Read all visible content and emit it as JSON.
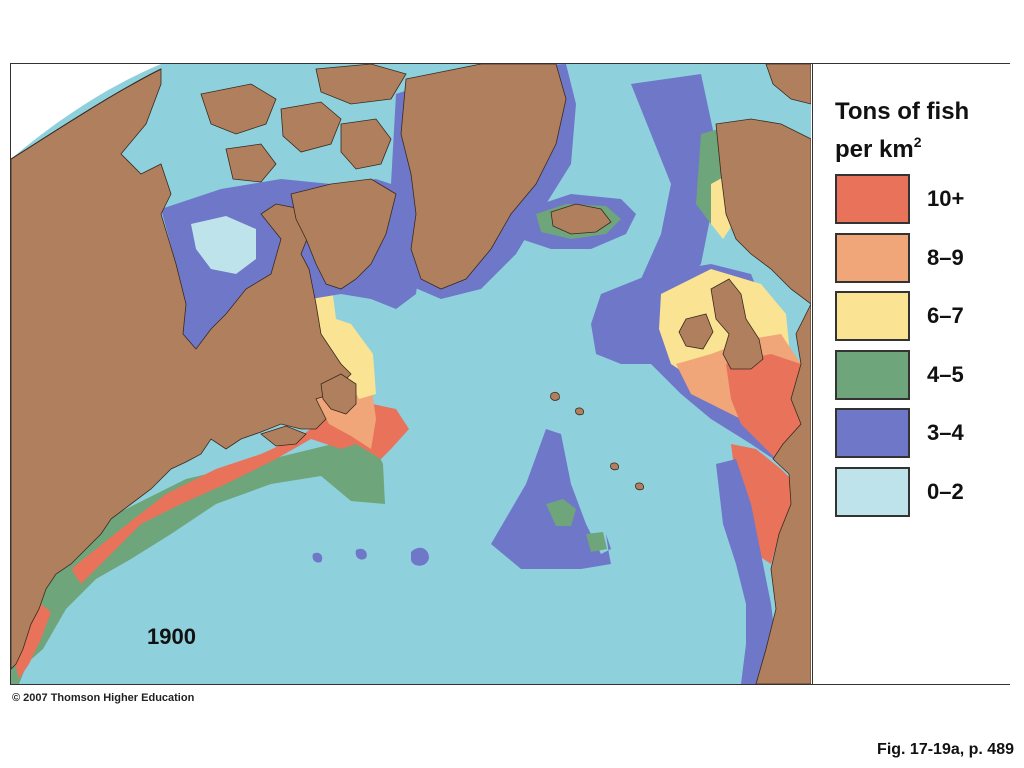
{
  "legend": {
    "title_line1": "Tons of fish",
    "title_line2": "per km",
    "title_sup": "2",
    "items": [
      {
        "label": "10+",
        "color": "#e8735a"
      },
      {
        "label": "8–9",
        "color": "#f0a679"
      },
      {
        "label": "6–7",
        "color": "#fae392"
      },
      {
        "label": "4–5",
        "color": "#6ea57b"
      },
      {
        "label": "3–4",
        "color": "#6f77c8"
      },
      {
        "label": "0–2",
        "color": "#bfe3ea"
      }
    ]
  },
  "map": {
    "year": "1900",
    "colors": {
      "land": "#b07f5e",
      "ocean": "#8fd0dd",
      "coastline": "#3a2a1e"
    }
  },
  "copyright": "© 2007 Thomson Higher Education",
  "caption": "Fig. 17-19a, p. 489"
}
